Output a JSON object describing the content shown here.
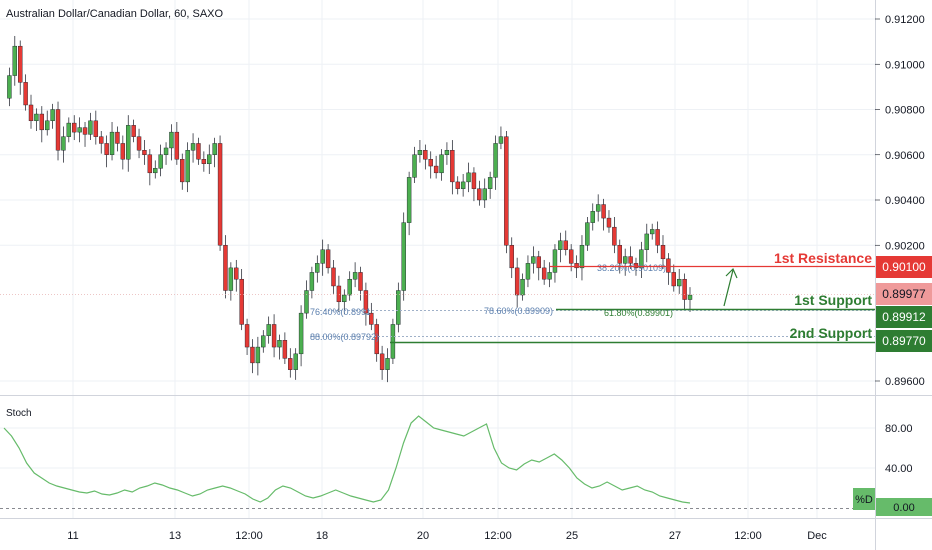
{
  "chart_title": "Australian Dollar/Canadian Dollar, 60, SAXO",
  "price_axis_ticks": [
    "0.91200",
    "0.91000",
    "0.90800",
    "0.90600",
    "0.90400",
    "0.90200",
    "0.89600"
  ],
  "time_axis_ticks": [
    "11",
    "13",
    "12:00",
    "18",
    "20",
    "12:00",
    "25",
    "27",
    "12:00",
    "Dec"
  ],
  "levels": {
    "resistance": {
      "label": "1st Resistance",
      "value": "0.90100",
      "color": "#e53935"
    },
    "support1": {
      "label": "1st Support",
      "value": "0.89912",
      "color": "#2e7d32"
    },
    "support2": {
      "label": "2nd Support",
      "value": "0.89770",
      "color": "#2e7d32"
    },
    "last_price": {
      "value": "0.89977",
      "color": "#ef9a9a"
    }
  },
  "fib_labels": {
    "fib_764": "76.40%(0.8991",
    "fib_880": "88.00%(0.89792)",
    "fib_786": "78.60%(0.89909)",
    "fib_382": "38.20%(0.90109)",
    "fib_618": "61.80%(0.89901)"
  },
  "stoch": {
    "label": "Stoch",
    "ticks": [
      "80.00",
      "40.00",
      "0.00"
    ],
    "badge": "%D"
  },
  "colors": {
    "up": "#4caf50",
    "down": "#e53935",
    "wick": "#131722",
    "stoch_line": "#66bb6a",
    "fib": "#5b7fae"
  },
  "chart_data": {
    "type": "candlestick",
    "title": "Australian Dollar/Canadian Dollar, 60, SAXO",
    "ylim": [
      0.8955,
      0.9125
    ],
    "close_path": [
      0.9085,
      0.9095,
      0.9108,
      0.9092,
      0.9082,
      0.9075,
      0.9078,
      0.9071,
      0.9075,
      0.908,
      0.9062,
      0.9068,
      0.9074,
      0.907,
      0.9072,
      0.9069,
      0.9075,
      0.9068,
      0.9065,
      0.906,
      0.907,
      0.9065,
      0.9058,
      0.9073,
      0.9068,
      0.9062,
      0.906,
      0.9052,
      0.9054,
      0.906,
      0.9063,
      0.907,
      0.9058,
      0.9048,
      0.9062,
      0.9065,
      0.9058,
      0.9056,
      0.906,
      0.9065,
      0.902,
      0.9,
      0.901,
      0.9005,
      0.8985,
      0.8975,
      0.8968,
      0.8975,
      0.898,
      0.8985,
      0.8975,
      0.8978,
      0.897,
      0.8965,
      0.8972,
      0.899,
      0.9,
      0.9008,
      0.9012,
      0.9018,
      0.901,
      0.9002,
      0.8995,
      0.8998,
      0.9005,
      0.9008,
      0.9,
      0.899,
      0.8985,
      0.8972,
      0.8965,
      0.897,
      0.8985,
      0.9,
      0.903,
      0.905,
      0.906,
      0.9062,
      0.9058,
      0.9055,
      0.9052,
      0.906,
      0.9062,
      0.9048,
      0.9045,
      0.9048,
      0.9052,
      0.9045,
      0.904,
      0.9045,
      0.905,
      0.9065,
      0.9068,
      0.902,
      0.901,
      0.8998,
      0.9005,
      0.9012,
      0.9015,
      0.901,
      0.9005,
      0.9008,
      0.9018,
      0.9022,
      0.9018,
      0.9012,
      0.901,
      0.902,
      0.903,
      0.9035,
      0.9038,
      0.9032,
      0.9028,
      0.902,
      0.9012,
      0.9015,
      0.9012,
      0.901,
      0.9018,
      0.9025,
      0.9027,
      0.902,
      0.9014,
      0.9008,
      0.9002,
      0.9005,
      0.8996,
      0.8998
    ],
    "stoch_d": [
      80,
      72,
      60,
      45,
      35,
      30,
      25,
      22,
      20,
      18,
      16,
      15,
      17,
      14,
      13,
      15,
      18,
      16,
      20,
      22,
      25,
      23,
      20,
      18,
      15,
      12,
      14,
      18,
      20,
      22,
      20,
      17,
      14,
      9,
      6,
      10,
      18,
      22,
      20,
      16,
      12,
      10,
      12,
      15,
      18,
      15,
      12,
      10,
      8,
      6,
      8,
      18,
      40,
      65,
      85,
      92,
      86,
      80,
      78,
      76,
      74,
      72,
      76,
      80,
      84,
      60,
      45,
      40,
      38,
      44,
      48,
      46,
      50,
      54,
      48,
      40,
      30,
      24,
      20,
      22,
      26,
      22,
      18,
      20,
      22,
      18,
      16,
      12,
      10,
      8,
      6,
      5
    ]
  }
}
